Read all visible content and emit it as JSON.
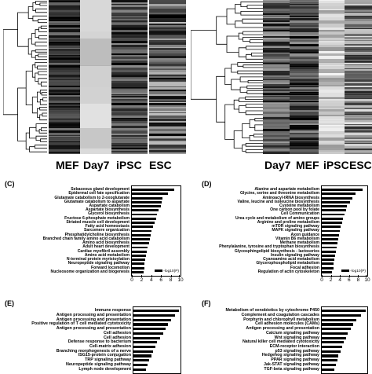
{
  "heatmaps": [
    {
      "columns": [
        "MEF",
        "Day7",
        "iPSC",
        "ESC"
      ]
    },
    {
      "columns": [
        "Day7",
        "MEF",
        "iPSC",
        "ESC"
      ]
    }
  ],
  "chart_data": [
    {
      "panel": "(C)",
      "type": "bar",
      "orientation": "horizontal",
      "xlim": [
        0,
        10
      ],
      "xticks": [
        "0",
        "2",
        "4",
        "6",
        "8",
        "10"
      ],
      "legend": "-log10(P)",
      "legend_position": "bottom-right",
      "categories": [
        "Sebaceous gland development",
        "Epidermal cell fate specification",
        "Glutamate catabolism to 2-oxoglutarate",
        "Glutamate catabolism to aspartate",
        "Aspartate catabolism",
        "Aspartate biosynthesis",
        "Glycerol biosynthesis",
        "Fructose 6-phosphate metabolism",
        "Striated muscle cell development",
        "Fatty acid homeostasis",
        "Sarcomere organization",
        "Phosphatidylcholine biosynthesis",
        "Branched chain family amino acid catabolism",
        "Amino acid biosynthesis",
        "Adult heart development",
        "Cardiac myofibril assembly",
        "Amino acid metabolism",
        "N-terminal protein myristoylation",
        "Neuropeptide signaling pathway",
        "Forward locomotion",
        "Nucleosome organization and biogenesis"
      ],
      "values": [
        8.7,
        7.4,
        6.3,
        6.2,
        6.0,
        5.5,
        5.2,
        5.0,
        4.6,
        4.3,
        4.1,
        3.9,
        3.7,
        3.5,
        3.3,
        3.1,
        2.9,
        2.8,
        2.6,
        2.5,
        2.4
      ]
    },
    {
      "panel": "(D)",
      "type": "bar",
      "orientation": "horizontal",
      "xlim": [
        0,
        10
      ],
      "xticks": [
        "0",
        "2",
        "4",
        "6",
        "8",
        "10"
      ],
      "legend": "-log10(P)",
      "legend_position": "bottom-right",
      "categories": [
        "Alanine and aspartate metabolism",
        "Glycine, serine and threonine metabolism",
        "Aminoacyl-tRNA biosynthesis",
        "Valine, leucine and isoleucine biosynthesis",
        "Cysteine metabolism",
        "One carbon pool by folate",
        "Cell Communication",
        "Urea cycle and metabolism of amino groups",
        "Arginine and proline metabolism",
        "mTOR signaling pathway",
        "MAPK signaling pathway",
        "Axon guidance",
        "Vitamin B6 metabolism",
        "Methane metabolism",
        "Phenylalanine, tyrosine and tryptophan biosynthesis",
        "Glycosphingolipid biosynthesis - lactoseries",
        "Insulin signaling pathway",
        "Cyanoamino acid metabolism",
        "Glycerophospholipid metabolism",
        "Focal adhesion",
        "Regulation of actin cytoskeleton"
      ],
      "values": [
        9.0,
        7.4,
        6.8,
        6.2,
        5.6,
        5.3,
        5.0,
        4.7,
        4.4,
        4.2,
        4.0,
        3.8,
        3.6,
        3.4,
        3.2,
        3.1,
        2.9,
        2.8,
        2.6,
        2.5,
        2.2
      ]
    },
    {
      "panel": "(E)",
      "type": "bar",
      "orientation": "horizontal",
      "xlim": [
        0,
        10
      ],
      "categories": [
        "Immune response",
        "Antigen processing and presentation",
        "Antigen processing and presentation",
        "Positive regulation of T cell mediated cytotoxicity",
        "Antigen processing and presentation",
        "Cell adhesion",
        "Cell adhesion",
        "Defense response to bacterium",
        "Cell-matrix adhesion",
        "Branching morphogenesis of a nerve",
        "ISG15-protein conjugation",
        "TRP signaling pathway",
        "Neuropeptide signaling pathway",
        "Lymph node development"
      ],
      "values": [
        9.6,
        8.8,
        8.0,
        7.4,
        6.9,
        6.4,
        5.6,
        5.0,
        4.6,
        4.2,
        3.8,
        3.4,
        3.0,
        2.6
      ]
    },
    {
      "panel": "(F)",
      "type": "bar",
      "orientation": "horizontal",
      "xlim": [
        0,
        10
      ],
      "categories": [
        "Metabolism of xenobiotics by cytochrome P450",
        "Complement and coagulation cascades",
        "Porphyrin and chlorophyll metabolism",
        "Cell adhesion molecules (CAMs)",
        "Antigen processing and presentation",
        "Calcium signaling pathway",
        "Wnt signaling pathway",
        "Natural killer cell mediated cytotoxicity",
        "ECM-receptor interaction",
        "p53 signaling pathway",
        "Hedgehog signaling pathway",
        "PPAR signaling pathway",
        "Jak-STAT signaling pathway",
        "TGF-beta signaling pathway"
      ],
      "values": [
        9.7,
        8.6,
        7.6,
        6.9,
        6.4,
        5.7,
        5.3,
        4.9,
        4.5,
        4.1,
        3.7,
        3.4,
        3.1,
        2.7
      ]
    }
  ]
}
